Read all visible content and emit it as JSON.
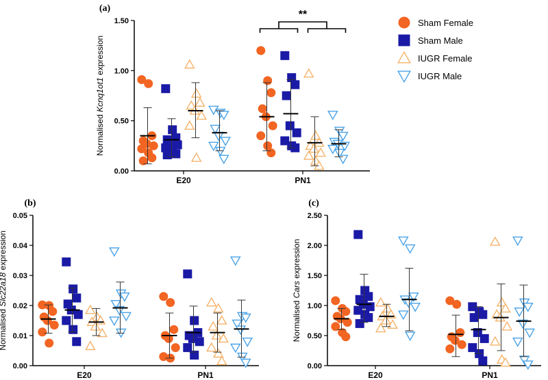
{
  "colors": {
    "sham_female": "#f26522",
    "sham_male": "#1a1aa6",
    "iugr_female": "#f5b36b",
    "iugr_male": "#4aa3e8"
  },
  "legend": [
    {
      "name": "Sham Female",
      "marker": "circle",
      "color": "#f26522",
      "filled": true
    },
    {
      "name": "Sham Male",
      "marker": "square",
      "color": "#1a1aa6",
      "filled": true
    },
    {
      "name": "IUGR Female",
      "marker": "triangle-up",
      "color": "#f5b36b",
      "filled": false
    },
    {
      "name": "IUGR Male",
      "marker": "triangle-down",
      "color": "#4aa3e8",
      "filled": false
    }
  ],
  "chart_data": [
    {
      "panel": "(a)",
      "type": "scatter",
      "ylabel_prefix": "Normalised ",
      "ylabel_italic": "Kcnq1ot1",
      "ylabel_suffix": " expression",
      "ylim": [
        0,
        1.5
      ],
      "yticks": [
        "0.00",
        "0.50",
        "1.00",
        "1.50"
      ],
      "ytick_values": [
        0,
        0.5,
        1.0,
        1.5
      ],
      "categories": [
        "E20",
        "PN1"
      ],
      "annotation": "**",
      "groups": [
        {
          "cat": 0,
          "series": "Sham Female",
          "mean": 0.35,
          "sd_low": 0.07,
          "sd_high": 0.63,
          "values": [
            0.91,
            0.87,
            0.35,
            0.3,
            0.27,
            0.25,
            0.22,
            0.18,
            0.13,
            0.1
          ]
        },
        {
          "cat": 0,
          "series": "Sham Male",
          "mean": 0.31,
          "sd_low": 0.14,
          "sd_high": 0.52,
          "values": [
            0.82,
            0.41,
            0.33,
            0.31,
            0.28,
            0.26,
            0.23,
            0.2,
            0.17,
            0.16
          ]
        },
        {
          "cat": 0,
          "series": "IUGR Female",
          "mean": 0.6,
          "sd_low": 0.33,
          "sd_high": 0.88,
          "values": [
            1.06,
            0.77,
            0.68,
            0.65,
            0.6,
            0.55,
            0.45,
            0.13
          ]
        },
        {
          "cat": 0,
          "series": "IUGR Male",
          "mean": 0.38,
          "sd_low": 0.2,
          "sd_high": 0.6,
          "values": [
            0.61,
            0.58,
            0.56,
            0.42,
            0.35,
            0.3,
            0.25,
            0.2,
            0.12
          ]
        },
        {
          "cat": 1,
          "series": "Sham Female",
          "mean": 0.54,
          "sd_low": 0.2,
          "sd_high": 0.88,
          "values": [
            1.2,
            0.9,
            0.78,
            0.62,
            0.54,
            0.45,
            0.35,
            0.25,
            0.18
          ]
        },
        {
          "cat": 1,
          "series": "Sham Male",
          "mean": 0.57,
          "sd_low": 0.23,
          "sd_high": 0.91,
          "values": [
            1.15,
            0.93,
            0.86,
            0.75,
            0.45,
            0.38,
            0.3,
            0.25,
            0.23
          ]
        },
        {
          "cat": 1,
          "series": "IUGR Female",
          "mean": 0.28,
          "sd_low": 0.05,
          "sd_high": 0.54,
          "values": [
            0.97,
            0.35,
            0.28,
            0.25,
            0.22,
            0.18,
            0.15,
            0.1,
            0.05
          ]
        },
        {
          "cat": 1,
          "series": "IUGR Male",
          "mean": 0.27,
          "sd_low": 0.14,
          "sd_high": 0.41,
          "values": [
            0.56,
            0.4,
            0.35,
            0.29,
            0.27,
            0.25,
            0.22,
            0.18,
            0.12
          ]
        }
      ]
    },
    {
      "panel": "(b)",
      "type": "scatter",
      "ylabel_prefix": "Normalised ",
      "ylabel_italic": "Slc22a18",
      "ylabel_suffix": " expression",
      "ylim": [
        0,
        0.05
      ],
      "yticks": [
        "0.00",
        "0.01",
        "0.02",
        "0.03",
        "0.04",
        "0.05"
      ],
      "ytick_values": [
        0,
        0.01,
        0.02,
        0.03,
        0.04,
        0.05
      ],
      "categories": [
        "E20",
        "PN1"
      ],
      "groups": [
        {
          "cat": 0,
          "series": "Sham Female",
          "mean": 0.0155,
          "sd_low": 0.0108,
          "sd_high": 0.0202,
          "values": [
            0.0202,
            0.02,
            0.018,
            0.0162,
            0.015,
            0.0135,
            0.0112,
            0.0075
          ]
        },
        {
          "cat": 0,
          "series": "Sham Male",
          "mean": 0.0185,
          "sd_low": 0.0112,
          "sd_high": 0.0258,
          "values": [
            0.0345,
            0.0255,
            0.0225,
            0.0205,
            0.0185,
            0.017,
            0.015,
            0.012,
            0.008
          ]
        },
        {
          "cat": 0,
          "series": "IUGR Female",
          "mean": 0.0145,
          "sd_low": 0.01,
          "sd_high": 0.019,
          "values": [
            0.0185,
            0.0162,
            0.015,
            0.0145,
            0.013,
            0.0108,
            0.0065
          ]
        },
        {
          "cat": 0,
          "series": "IUGR Male",
          "mean": 0.0192,
          "sd_low": 0.0108,
          "sd_high": 0.0278,
          "values": [
            0.038,
            0.024,
            0.023,
            0.0205,
            0.0185,
            0.0165,
            0.015,
            0.011
          ]
        },
        {
          "cat": 1,
          "series": "Sham Female",
          "mean": 0.01,
          "sd_low": 0.0025,
          "sd_high": 0.0175,
          "values": [
            0.023,
            0.021,
            0.012,
            0.01,
            0.009,
            0.006,
            0.003,
            0.0025
          ]
        },
        {
          "cat": 1,
          "series": "Sham Male",
          "mean": 0.011,
          "sd_low": 0.0045,
          "sd_high": 0.0198,
          "values": [
            0.0305,
            0.015,
            0.011,
            0.01,
            0.009,
            0.008,
            0.006,
            0.0035
          ]
        },
        {
          "cat": 1,
          "series": "IUGR Female",
          "mean": 0.011,
          "sd_low": 0.0045,
          "sd_high": 0.0175,
          "values": [
            0.021,
            0.019,
            0.015,
            0.013,
            0.01,
            0.009,
            0.006,
            0.004,
            0.0015
          ]
        },
        {
          "cat": 1,
          "series": "IUGR Male",
          "mean": 0.0122,
          "sd_low": 0.0028,
          "sd_high": 0.0218,
          "values": [
            0.035,
            0.0165,
            0.016,
            0.014,
            0.012,
            0.008,
            0.006,
            0.003,
            0.001
          ]
        }
      ]
    },
    {
      "panel": "(c)",
      "type": "scatter",
      "ylabel_prefix": "Normalised ",
      "ylabel_italic": "Cars",
      "ylabel_suffix": " expression",
      "ylim": [
        0,
        2.5
      ],
      "yticks": [
        "0.00",
        "0.50",
        "1.00",
        "1.50",
        "2.00",
        "2.50"
      ],
      "ytick_values": [
        0,
        0.5,
        1.0,
        1.5,
        2.0,
        2.5
      ],
      "categories": [
        "E20",
        "PN1"
      ],
      "groups": [
        {
          "cat": 0,
          "series": "Sham Female",
          "mean": 0.78,
          "sd_low": 0.6,
          "sd_high": 0.95,
          "values": [
            1.08,
            0.95,
            0.9,
            0.82,
            0.78,
            0.72,
            0.65,
            0.55,
            0.48
          ]
        },
        {
          "cat": 0,
          "series": "Sham Male",
          "mean": 1.02,
          "sd_low": 0.72,
          "sd_high": 1.52,
          "values": [
            2.18,
            1.25,
            1.15,
            1.1,
            1.02,
            0.98,
            0.92,
            0.85,
            0.8,
            0.7
          ]
        },
        {
          "cat": 0,
          "series": "IUGR Female",
          "mean": 0.82,
          "sd_low": 0.65,
          "sd_high": 1.02,
          "values": [
            1.05,
            0.95,
            0.85,
            0.82,
            0.75,
            0.68,
            0.62
          ]
        },
        {
          "cat": 0,
          "series": "IUGR Male",
          "mean": 1.1,
          "sd_low": 0.58,
          "sd_high": 1.62,
          "values": [
            2.08,
            1.95,
            1.15,
            1.1,
            1.05,
            0.98,
            0.85,
            0.5
          ]
        },
        {
          "cat": 1,
          "series": "Sham Female",
          "mean": 0.52,
          "sd_low": 0.15,
          "sd_high": 0.84,
          "values": [
            1.08,
            1.02,
            0.55,
            0.48,
            0.42,
            0.35,
            0.28
          ]
        },
        {
          "cat": 1,
          "series": "Sham Male",
          "mean": 0.6,
          "sd_low": 0.2,
          "sd_high": 0.98,
          "values": [
            0.98,
            0.9,
            0.85,
            0.8,
            0.55,
            0.45,
            0.3,
            0.2,
            0.08
          ]
        },
        {
          "cat": 1,
          "series": "IUGR Female",
          "mean": 0.8,
          "sd_low": 0.25,
          "sd_high": 1.36,
          "values": [
            2.06,
            1.05,
            0.95,
            0.85,
            0.8,
            0.65,
            0.4,
            0.1,
            0.05
          ]
        },
        {
          "cat": 1,
          "series": "IUGR Male",
          "mean": 0.74,
          "sd_low": 0.15,
          "sd_high": 1.34,
          "values": [
            2.08,
            1.05,
            0.98,
            0.9,
            0.7,
            0.55,
            0.4,
            0.1,
            0.02
          ]
        }
      ]
    }
  ]
}
